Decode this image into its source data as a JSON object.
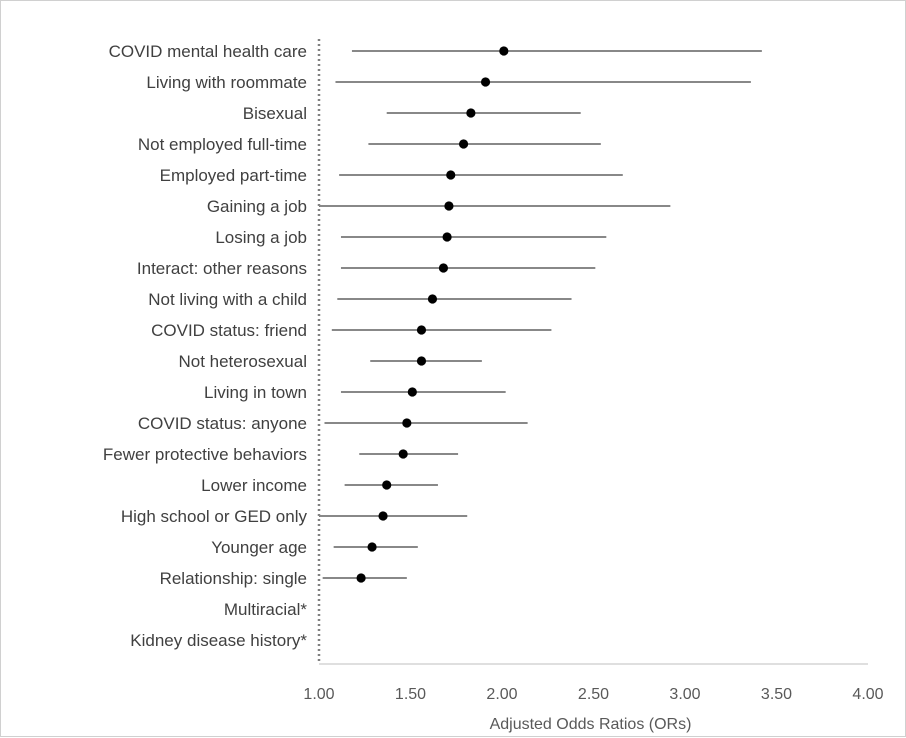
{
  "chart_data": {
    "type": "forest",
    "xlabel": "Adjusted Odds Ratios (ORs)",
    "xlim": [
      1.0,
      4.0
    ],
    "x_ticks": [
      "1.00",
      "1.50",
      "2.00",
      "2.50",
      "3.00",
      "3.50",
      "4.00"
    ],
    "reference_line": 1.0,
    "rows": [
      {
        "label": "COVID mental health care",
        "or": 2.01,
        "lower": 1.18,
        "upper": 3.42
      },
      {
        "label": "Living with roommate",
        "or": 1.91,
        "lower": 1.09,
        "upper": 3.36
      },
      {
        "label": "Bisexual",
        "or": 1.83,
        "lower": 1.37,
        "upper": 2.43
      },
      {
        "label": "Not employed full-time",
        "or": 1.79,
        "lower": 1.27,
        "upper": 2.54
      },
      {
        "label": "Employed part-time",
        "or": 1.72,
        "lower": 1.11,
        "upper": 2.66
      },
      {
        "label": "Gaining a job",
        "or": 1.71,
        "lower": 1.0,
        "upper": 2.92
      },
      {
        "label": "Losing a job",
        "or": 1.7,
        "lower": 1.12,
        "upper": 2.57
      },
      {
        "label": "Interact: other reasons",
        "or": 1.68,
        "lower": 1.12,
        "upper": 2.51
      },
      {
        "label": "Not living with a child",
        "or": 1.62,
        "lower": 1.1,
        "upper": 2.38
      },
      {
        "label": "COVID status: friend",
        "or": 1.56,
        "lower": 1.07,
        "upper": 2.27
      },
      {
        "label": "Not heterosexual",
        "or": 1.56,
        "lower": 1.28,
        "upper": 1.89
      },
      {
        "label": "Living in town",
        "or": 1.51,
        "lower": 1.12,
        "upper": 2.02
      },
      {
        "label": "COVID status: anyone",
        "or": 1.48,
        "lower": 1.03,
        "upper": 2.14
      },
      {
        "label": "Fewer protective behaviors",
        "or": 1.46,
        "lower": 1.22,
        "upper": 1.76
      },
      {
        "label": "Lower income",
        "or": 1.37,
        "lower": 1.14,
        "upper": 1.65
      },
      {
        "label": "High school or GED only",
        "or": 1.35,
        "lower": 1.0,
        "upper": 1.81
      },
      {
        "label": "Younger age",
        "or": 1.29,
        "lower": 1.08,
        "upper": 1.54
      },
      {
        "label": "Relationship: single",
        "or": 1.23,
        "lower": 1.02,
        "upper": 1.48
      },
      {
        "label": "Multiracial*",
        "or": null,
        "lower": null,
        "upper": null
      },
      {
        "label": "Kidney disease history*",
        "or": null,
        "lower": null,
        "upper": null
      }
    ],
    "marker_color": "#000000",
    "ci_line_color": "#404040",
    "reference_line_style": "dotted",
    "grid": false,
    "legend": "none"
  }
}
